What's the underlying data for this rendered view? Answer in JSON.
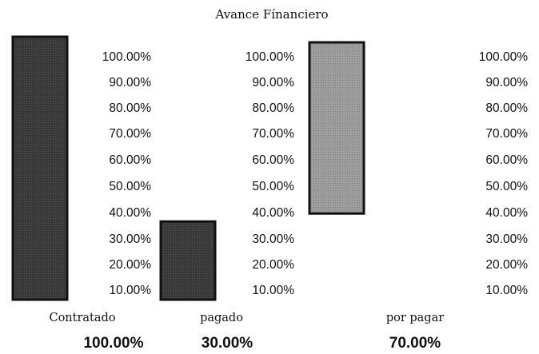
{
  "chart_data": {
    "type": "bar",
    "title": "Avance Fínanciero",
    "categories": [
      "Contratado",
      "pagado",
      "por pagar"
    ],
    "value_labels": [
      "100.00%",
      "30.00%",
      "70.00%"
    ],
    "bars": [
      {
        "name": "Contratado",
        "base": 0,
        "top": 100,
        "color": "#3a3a3a"
      },
      {
        "name": "pagado",
        "base": 0,
        "top": 30,
        "color": "#3a3a3a"
      },
      {
        "name": "por pagar",
        "base": 30,
        "top": 100,
        "color": "#9c9c9c"
      }
    ],
    "ylim": [
      0,
      100
    ],
    "y_ticks": [
      "10.00%",
      "20.00%",
      "30.00%",
      "40.00%",
      "50.00%",
      "60.00%",
      "70.00%",
      "80.00%",
      "90.00%",
      "100.00%"
    ],
    "grid": false,
    "legend": "none"
  }
}
